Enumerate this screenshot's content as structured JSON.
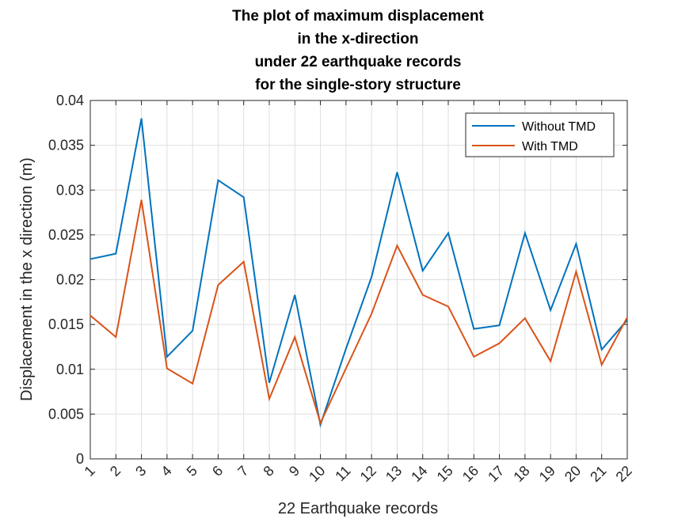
{
  "chart_data": {
    "type": "line",
    "title_lines": [
      "The plot of maximum displacement",
      "in the x-direction",
      "under 22 earthquake records",
      "for the single-story structure"
    ],
    "xlabel": "22 Earthquake records",
    "ylabel": "Displacement in the x direction (m)",
    "categories": [
      "1",
      "2",
      "3",
      "4",
      "5",
      "6",
      "7",
      "8",
      "9",
      "10",
      "11",
      "12",
      "13",
      "14",
      "15",
      "16",
      "17",
      "18",
      "19",
      "20",
      "21",
      "22"
    ],
    "x": [
      1,
      2,
      3,
      4,
      5,
      6,
      7,
      8,
      9,
      10,
      11,
      12,
      13,
      14,
      15,
      16,
      17,
      18,
      19,
      20,
      21,
      22
    ],
    "xlim": [
      1,
      22
    ],
    "ylim": [
      0,
      0.04
    ],
    "yticks": [
      "0",
      "0.005",
      "0.01",
      "0.015",
      "0.02",
      "0.025",
      "0.03",
      "0.035",
      "0.04"
    ],
    "grid": true,
    "legend_position": "top-right",
    "series": [
      {
        "name": "Without TMD",
        "color": "#0072BD",
        "values": [
          0.0223,
          0.0229,
          0.038,
          0.0114,
          0.0143,
          0.0311,
          0.0292,
          0.0085,
          0.0183,
          0.0038,
          0.0123,
          0.0203,
          0.032,
          0.021,
          0.0252,
          0.0145,
          0.0149,
          0.0252,
          0.0166,
          0.024,
          0.0122,
          0.0155
        ]
      },
      {
        "name": "With TMD",
        "color": "#D95319",
        "values": [
          0.016,
          0.0136,
          0.0289,
          0.0101,
          0.0084,
          0.0194,
          0.022,
          0.0067,
          0.0136,
          0.004,
          0.0101,
          0.0162,
          0.0238,
          0.0183,
          0.017,
          0.0114,
          0.0129,
          0.0157,
          0.0109,
          0.0209,
          0.0105,
          0.0158
        ]
      }
    ]
  }
}
